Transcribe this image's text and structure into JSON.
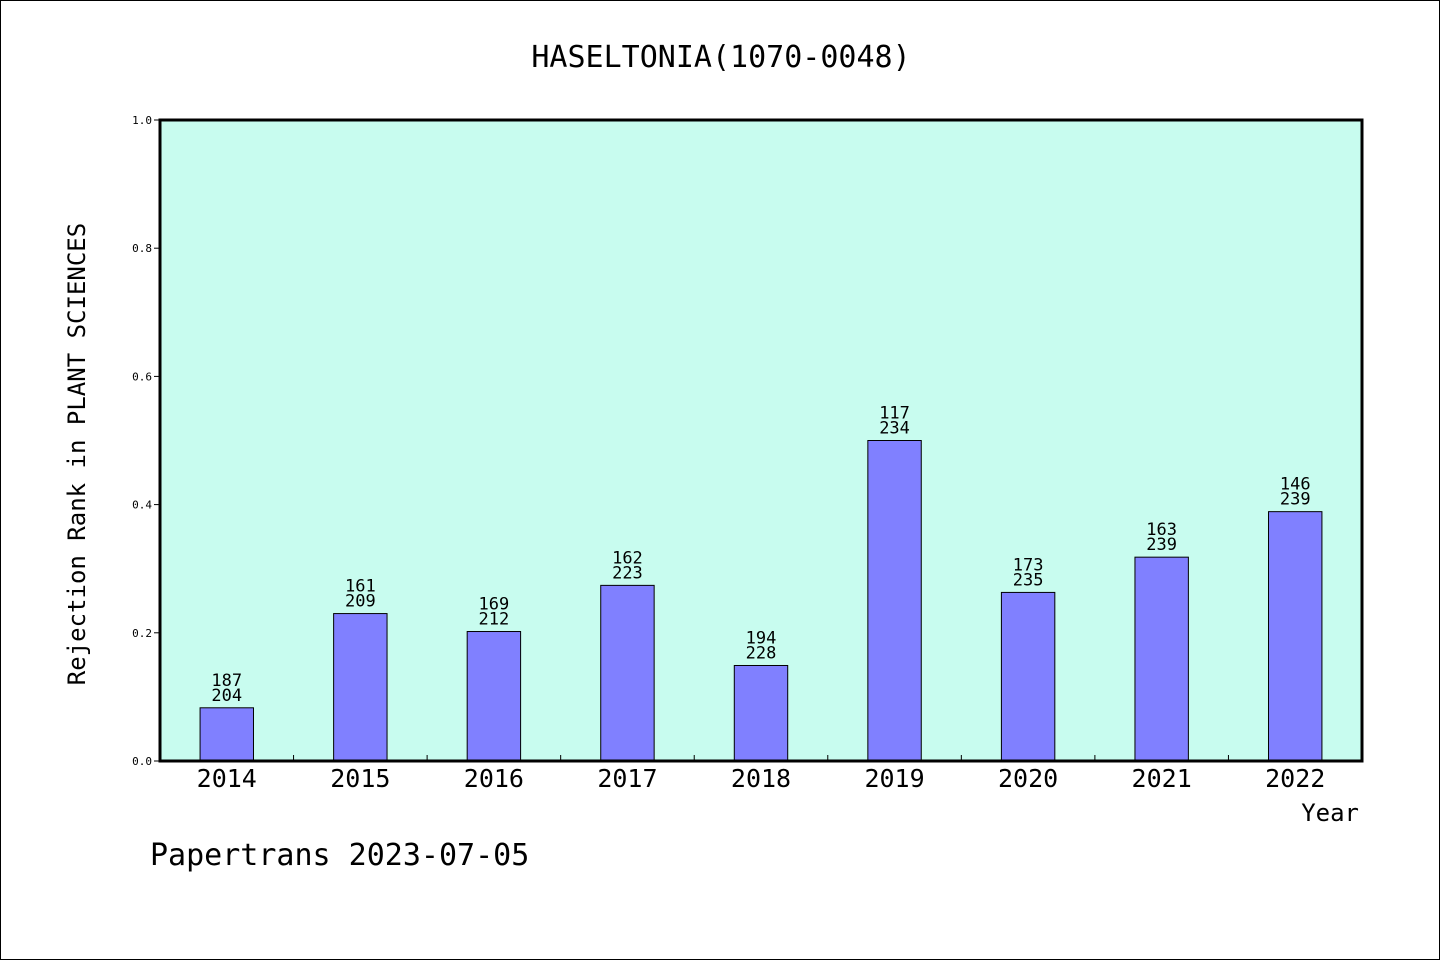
{
  "chart_data": {
    "type": "bar",
    "title": "HASELTONIA(1070-0048)",
    "xlabel": "Year",
    "ylabel": "Rejection Rank in PLANT SCIENCES",
    "categories": [
      "2014",
      "2015",
      "2016",
      "2017",
      "2018",
      "2019",
      "2020",
      "2021",
      "2022"
    ],
    "values": [
      0.083,
      0.23,
      0.202,
      0.274,
      0.149,
      0.5,
      0.263,
      0.318,
      0.389
    ],
    "rank": [
      "187",
      "161",
      "169",
      "162",
      "194",
      "117",
      "173",
      "163",
      "146"
    ],
    "total": [
      "204",
      "209",
      "212",
      "223",
      "228",
      "234",
      "235",
      "239",
      "239"
    ],
    "ylim": [
      0,
      1.0
    ],
    "yticks": [
      "0.0",
      "0.2",
      "0.4",
      "0.6",
      "0.8",
      "1.0"
    ],
    "grid": false,
    "colors": {
      "plot_bg": "#c8fcef",
      "bar": "#8080ff"
    }
  },
  "footer": "Papertrans 2023-07-05"
}
